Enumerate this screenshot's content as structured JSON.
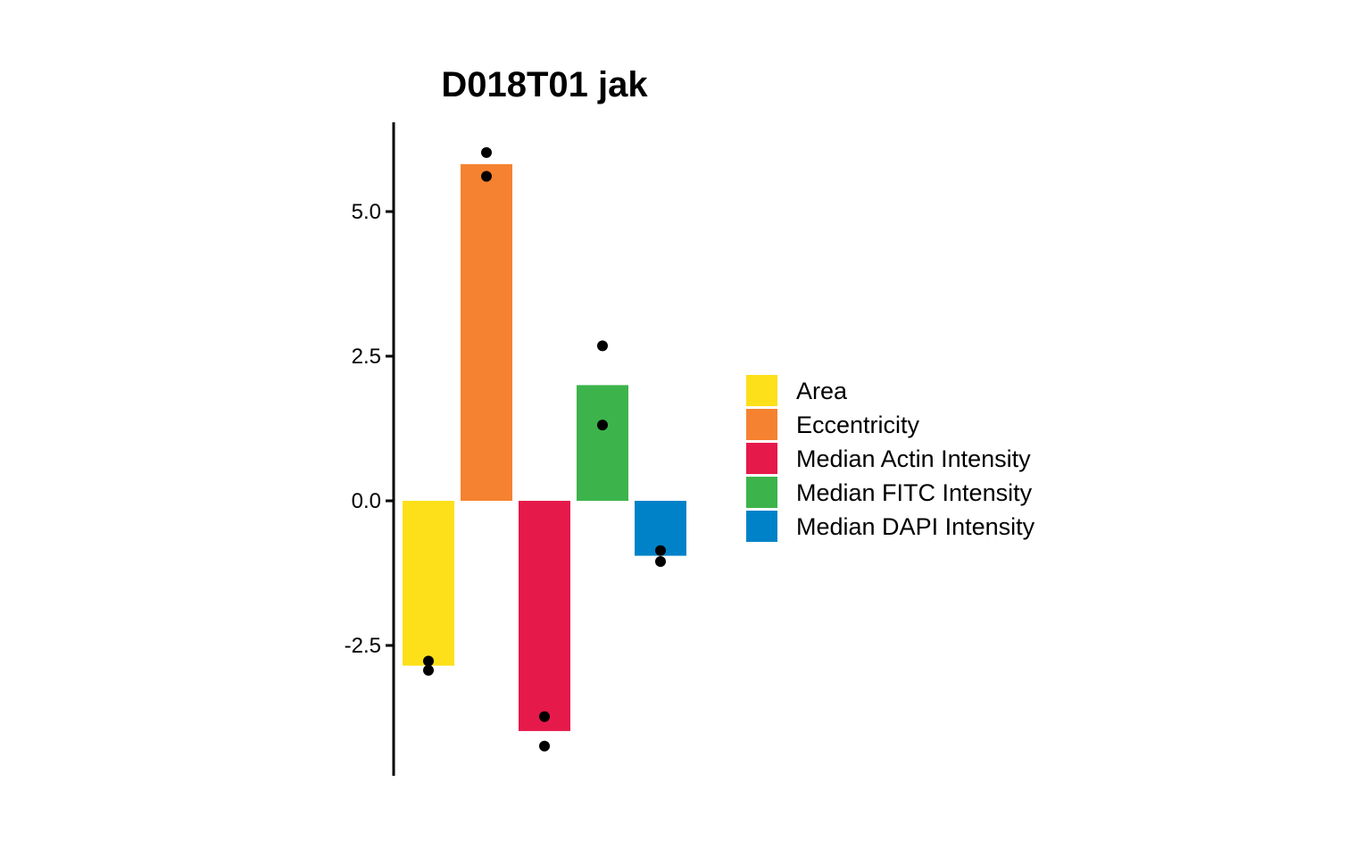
{
  "chart_data": {
    "type": "bar",
    "title": "D018T01 jak",
    "xlabel": "",
    "ylabel": "",
    "ylim": [
      -4.75,
      6.5
    ],
    "yticks": [
      5.0,
      2.5,
      0.0,
      -2.5
    ],
    "ytick_labels": [
      "5.0",
      "2.5",
      "0.0",
      "-2.5"
    ],
    "grid": false,
    "legend_position": "right",
    "categories": [
      "Area",
      "Eccentricity",
      "Median Actin Intensity",
      "Median FITC Intensity",
      "Median DAPI Intensity"
    ],
    "values": [
      -2.85,
      5.82,
      -3.98,
      2.0,
      -0.95
    ],
    "colors": [
      "#FDE01A",
      "#F58230",
      "#E6194B",
      "#3CB44B",
      "#0082C8"
    ],
    "points": [
      [
        -2.77,
        -2.93
      ],
      [
        6.02,
        5.61
      ],
      [
        -3.73,
        -4.24
      ],
      [
        2.68,
        1.31
      ],
      [
        -0.86,
        -1.05
      ]
    ]
  }
}
